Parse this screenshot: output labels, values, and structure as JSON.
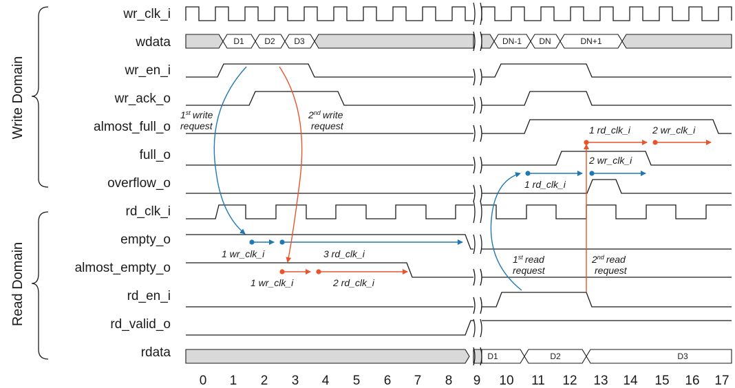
{
  "domains": {
    "write": "Write Domain",
    "read": "Read Domain"
  },
  "signals": [
    {
      "name": "wr_clk_i"
    },
    {
      "name": "wdata"
    },
    {
      "name": "wr_en_i"
    },
    {
      "name": "wr_ack_o"
    },
    {
      "name": "almost_full_o"
    },
    {
      "name": "full_o"
    },
    {
      "name": "overflow_o"
    },
    {
      "name": "rd_clk_i"
    },
    {
      "name": "empty_o"
    },
    {
      "name": "almost_empty_o"
    },
    {
      "name": "rd_en_i"
    },
    {
      "name": "rd_valid_o"
    },
    {
      "name": "rdata"
    }
  ],
  "time_ticks": [
    "0",
    "1",
    "2",
    "3",
    "4",
    "5",
    "6",
    "7",
    "8",
    "9",
    "10",
    "11",
    "12",
    "13",
    "14",
    "15",
    "16",
    "17"
  ],
  "bus_labels": {
    "wdata": [
      "D1",
      "D2",
      "D3",
      "DN-1",
      "DN",
      "DN+1"
    ],
    "rdata": [
      "D1",
      "D2",
      "D3"
    ]
  },
  "annotations": {
    "write_request_1": {
      "num": "1",
      "sup": "st",
      "line1": "write",
      "line2": "request"
    },
    "write_request_2": {
      "num": "2",
      "sup": "nd",
      "line1": "write",
      "line2": "request"
    },
    "read_request_1": {
      "num": "1",
      "sup": "st",
      "line1": "read",
      "line2": "request"
    },
    "read_request_2": {
      "num": "2",
      "sup": "nd",
      "line1": "read",
      "line2": "request"
    },
    "empty_wr_clk": "1 wr_clk_i",
    "empty_rd_clk": "3 rd_clk_i",
    "almost_empty_wr_clk": "1 wr_clk_i",
    "almost_empty_rd_clk": "2 rd_clk_i",
    "almost_full_rd_clk": "1 rd_clk_i",
    "almost_full_wr_clk": "2 wr_clk_i",
    "full_wr_clk": "2 wr_clk_i",
    "overflow_rd_clk": "1 rd_clk_i"
  },
  "colors": {
    "write_arrow": "#1f77b4",
    "read_arrow": "#e8542c",
    "wave": "#1a1a1a",
    "bus_fill": "#d9d9d9"
  }
}
